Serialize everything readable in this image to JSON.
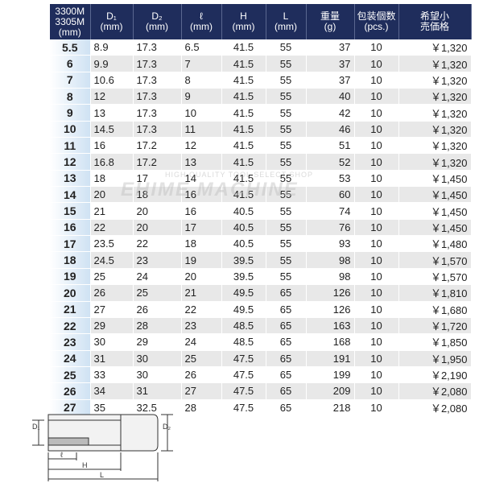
{
  "table": {
    "header": [
      [
        "3300M",
        "3305M",
        "(mm)"
      ],
      [
        "D₁",
        "(mm)"
      ],
      [
        "D₂",
        "(mm)"
      ],
      [
        "ℓ",
        "(mm)"
      ],
      [
        "H",
        "(mm)"
      ],
      [
        "L",
        "(mm)"
      ],
      [
        "重量",
        "(g)"
      ],
      [
        "包装個数",
        "(pcs.)"
      ],
      [
        "希望小",
        "売価格"
      ]
    ],
    "rows": [
      [
        "5.5",
        "8.9",
        "17.3",
        "6.5",
        "41.5",
        "55",
        "37",
        "10",
        "￥1,320"
      ],
      [
        "6",
        "9.9",
        "17.3",
        "7",
        "41.5",
        "55",
        "37",
        "10",
        "￥1,320"
      ],
      [
        "7",
        "10.6",
        "17.3",
        "8",
        "41.5",
        "55",
        "37",
        "10",
        "￥1,320"
      ],
      [
        "8",
        "12",
        "17.3",
        "9",
        "41.5",
        "55",
        "40",
        "10",
        "￥1,320"
      ],
      [
        "9",
        "13",
        "17.3",
        "10",
        "41.5",
        "55",
        "42",
        "10",
        "￥1,320"
      ],
      [
        "10",
        "14.5",
        "17.3",
        "11",
        "41.5",
        "55",
        "46",
        "10",
        "￥1,320"
      ],
      [
        "11",
        "16",
        "17.2",
        "12",
        "41.5",
        "55",
        "51",
        "10",
        "￥1,320"
      ],
      [
        "12",
        "16.8",
        "17.2",
        "13",
        "41.5",
        "55",
        "52",
        "10",
        "￥1,320"
      ],
      [
        "13",
        "18",
        "17",
        "14",
        "41.5",
        "55",
        "53",
        "10",
        "￥1,450"
      ],
      [
        "14",
        "20",
        "18",
        "16",
        "41.5",
        "55",
        "60",
        "10",
        "￥1,450"
      ],
      [
        "15",
        "21",
        "20",
        "16",
        "40.5",
        "55",
        "74",
        "10",
        "￥1,450"
      ],
      [
        "16",
        "22",
        "20",
        "17",
        "40.5",
        "55",
        "76",
        "10",
        "￥1,450"
      ],
      [
        "17",
        "23.5",
        "22",
        "18",
        "40.5",
        "55",
        "93",
        "10",
        "￥1,480"
      ],
      [
        "18",
        "24.5",
        "23",
        "19",
        "39.5",
        "55",
        "98",
        "10",
        "￥1,570"
      ],
      [
        "19",
        "25",
        "24",
        "20",
        "39.5",
        "55",
        "98",
        "10",
        "￥1,570"
      ],
      [
        "20",
        "26",
        "25",
        "21",
        "49.5",
        "65",
        "126",
        "10",
        "￥1,810"
      ],
      [
        "21",
        "27",
        "26",
        "22",
        "49.5",
        "65",
        "126",
        "10",
        "￥1,680"
      ],
      [
        "22",
        "29",
        "28",
        "23",
        "48.5",
        "65",
        "163",
        "10",
        "￥1,720"
      ],
      [
        "23",
        "30",
        "29",
        "24",
        "48.5",
        "65",
        "168",
        "10",
        "￥1,850"
      ],
      [
        "24",
        "31",
        "30",
        "25",
        "47.5",
        "65",
        "191",
        "10",
        "￥1,950"
      ],
      [
        "25",
        "33",
        "30",
        "26",
        "47.5",
        "65",
        "199",
        "10",
        "￥2,190"
      ],
      [
        "26",
        "34",
        "31",
        "27",
        "47.5",
        "65",
        "209",
        "10",
        "￥2,080"
      ],
      [
        "27",
        "35",
        "32.5",
        "28",
        "47.5",
        "65",
        "218",
        "10",
        "￥2,080"
      ]
    ]
  },
  "watermark": {
    "line1": "HIGH QUALITY TOOL SELECT SHOP",
    "line2": "EHIME MACHINE"
  },
  "diagram": {
    "d1": "D₁",
    "d2": "D₂",
    "l_small": "ℓ",
    "h": "H",
    "l": "L"
  }
}
